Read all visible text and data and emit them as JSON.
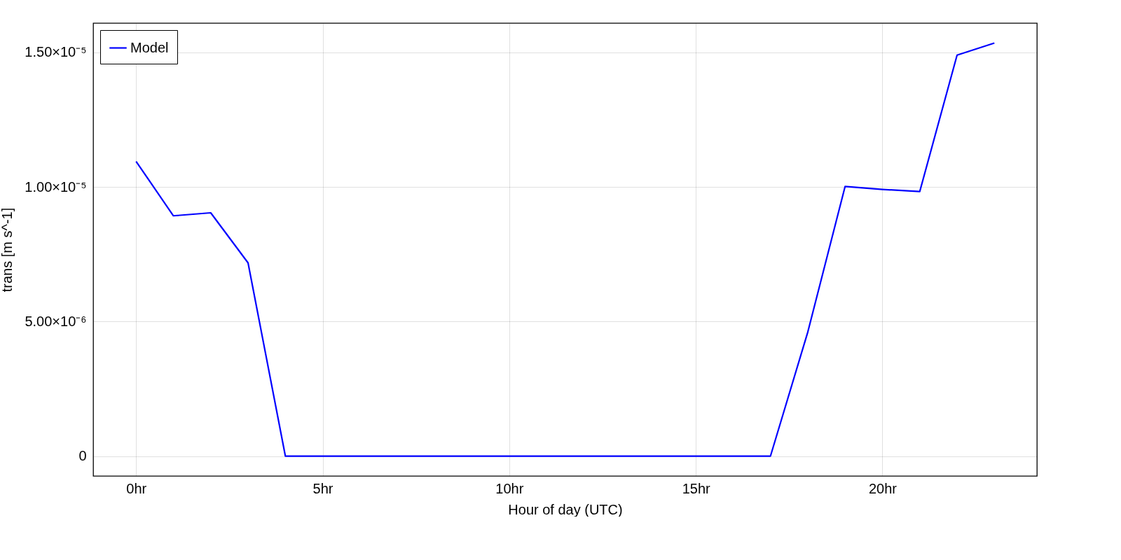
{
  "chart_data": {
    "type": "line",
    "xlabel": "Hour of day (UTC)",
    "ylabel": "trans [m s^-1]",
    "x": [
      0,
      1,
      2,
      3,
      4,
      5,
      6,
      7,
      8,
      9,
      10,
      11,
      12,
      13,
      14,
      15,
      16,
      17,
      18,
      19,
      20,
      21,
      22,
      23
    ],
    "series": [
      {
        "name": "Model",
        "color": "#0000ff",
        "values": [
          1.095e-05,
          8.93e-06,
          9.04e-06,
          7.18e-06,
          0,
          0,
          0,
          0,
          0,
          0,
          0,
          0,
          0,
          0,
          0,
          0,
          0,
          0,
          4.61e-06,
          1.002e-05,
          9.91e-06,
          9.83e-06,
          1.49e-05,
          1.535e-05
        ]
      }
    ],
    "xlim": [
      -1.15,
      24.14
    ],
    "ylim": [
      -7.4e-07,
      1.609e-05
    ],
    "xticks": [
      {
        "value": 0,
        "label": "0hr"
      },
      {
        "value": 5,
        "label": "5hr"
      },
      {
        "value": 10,
        "label": "10hr"
      },
      {
        "value": 15,
        "label": "15hr"
      },
      {
        "value": 20,
        "label": "20hr"
      }
    ],
    "yticks": [
      0,
      {
        "value": 5e-06,
        "label": "5.00×10⁻⁶"
      },
      {
        "value": 1e-05,
        "label": "1.00×10⁻⁵"
      },
      {
        "value": 1.5e-05,
        "label": "1.50×10⁻⁵"
      }
    ],
    "grid": true,
    "legend": "top left",
    "marker": "none",
    "line_style": "solid"
  }
}
